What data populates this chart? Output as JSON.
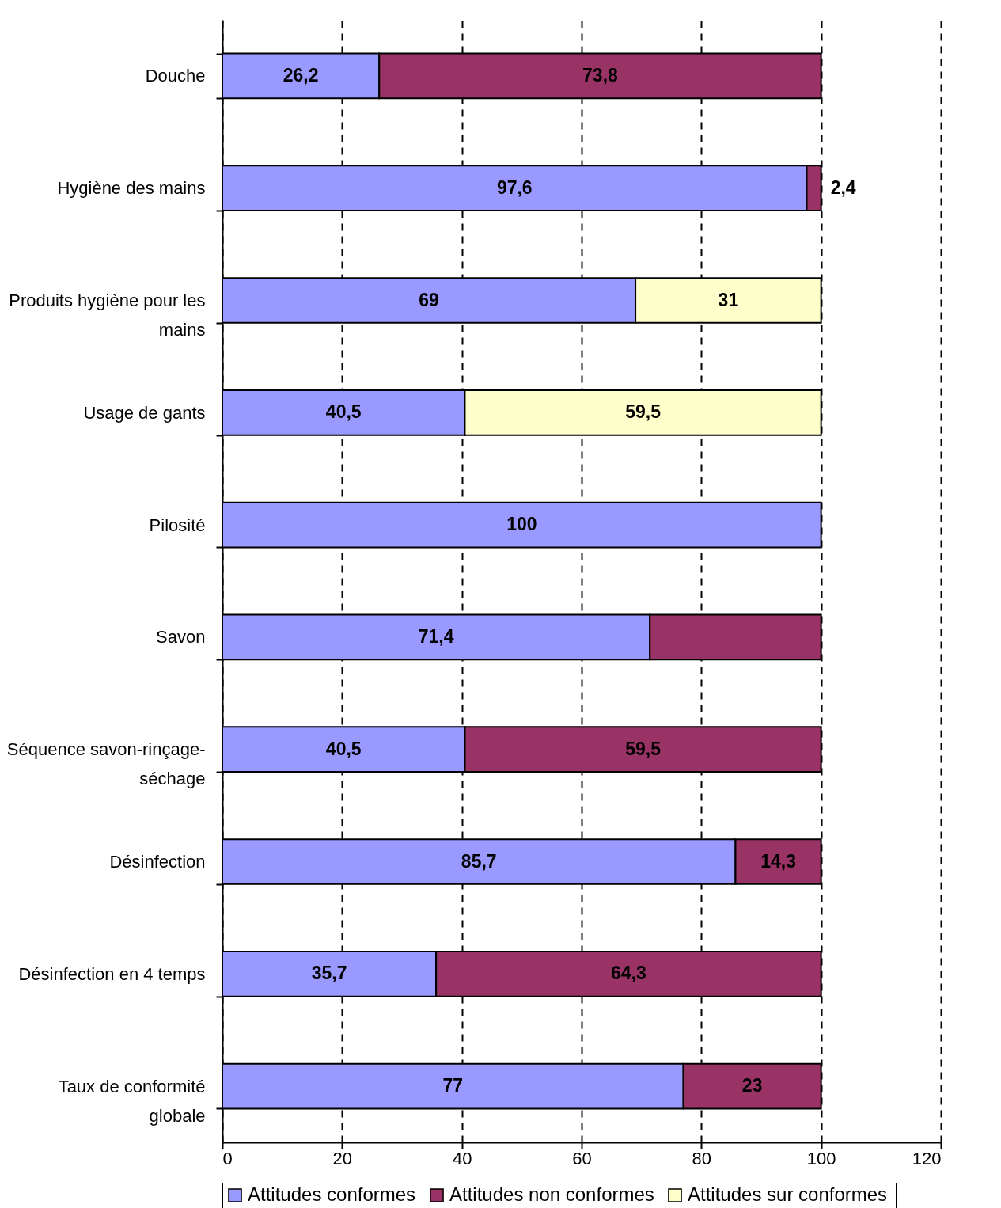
{
  "chart_data": {
    "type": "bar",
    "orientation": "horizontal",
    "stacked": true,
    "categories": [
      "Douche",
      "Hygiène des mains",
      "Produits hygiène pour les mains",
      "Usage de gants",
      "Pilosité",
      "Savon",
      "Séquence savon-rinçage-séchage",
      "Désinfection",
      "Désinfection en 4 temps",
      "Taux de conformité globale"
    ],
    "series": [
      {
        "name": "Attitudes conformes",
        "color": "#9999ff",
        "values": [
          26.2,
          97.6,
          69,
          40.5,
          100,
          71.4,
          40.5,
          85.7,
          35.7,
          77
        ],
        "value_labels": [
          "26,2",
          "97,6",
          "69",
          "40,5",
          "100",
          "71,4",
          "40,5",
          "85,7",
          "35,7",
          "77"
        ]
      },
      {
        "name": "Attitudes non conformes",
        "color": "#993366",
        "values": [
          73.8,
          2.4,
          null,
          null,
          null,
          28.6,
          59.5,
          14.3,
          64.3,
          23
        ],
        "value_labels": [
          "73,8",
          "2,4",
          null,
          null,
          null,
          null,
          "59,5",
          "14,3",
          "64,3",
          "23"
        ]
      },
      {
        "name": "Attitudes  sur conformes",
        "color": "#ffffcc",
        "values": [
          null,
          null,
          31,
          59.5,
          null,
          null,
          null,
          null,
          null,
          null
        ],
        "value_labels": [
          null,
          null,
          "31",
          "59,5",
          null,
          null,
          null,
          null,
          null,
          null
        ]
      }
    ],
    "xlim": [
      0,
      120
    ],
    "xticks": [
      0,
      20,
      40,
      60,
      80,
      100,
      120
    ],
    "grid": "x",
    "line_style": "dashed",
    "legend": "bottom"
  }
}
